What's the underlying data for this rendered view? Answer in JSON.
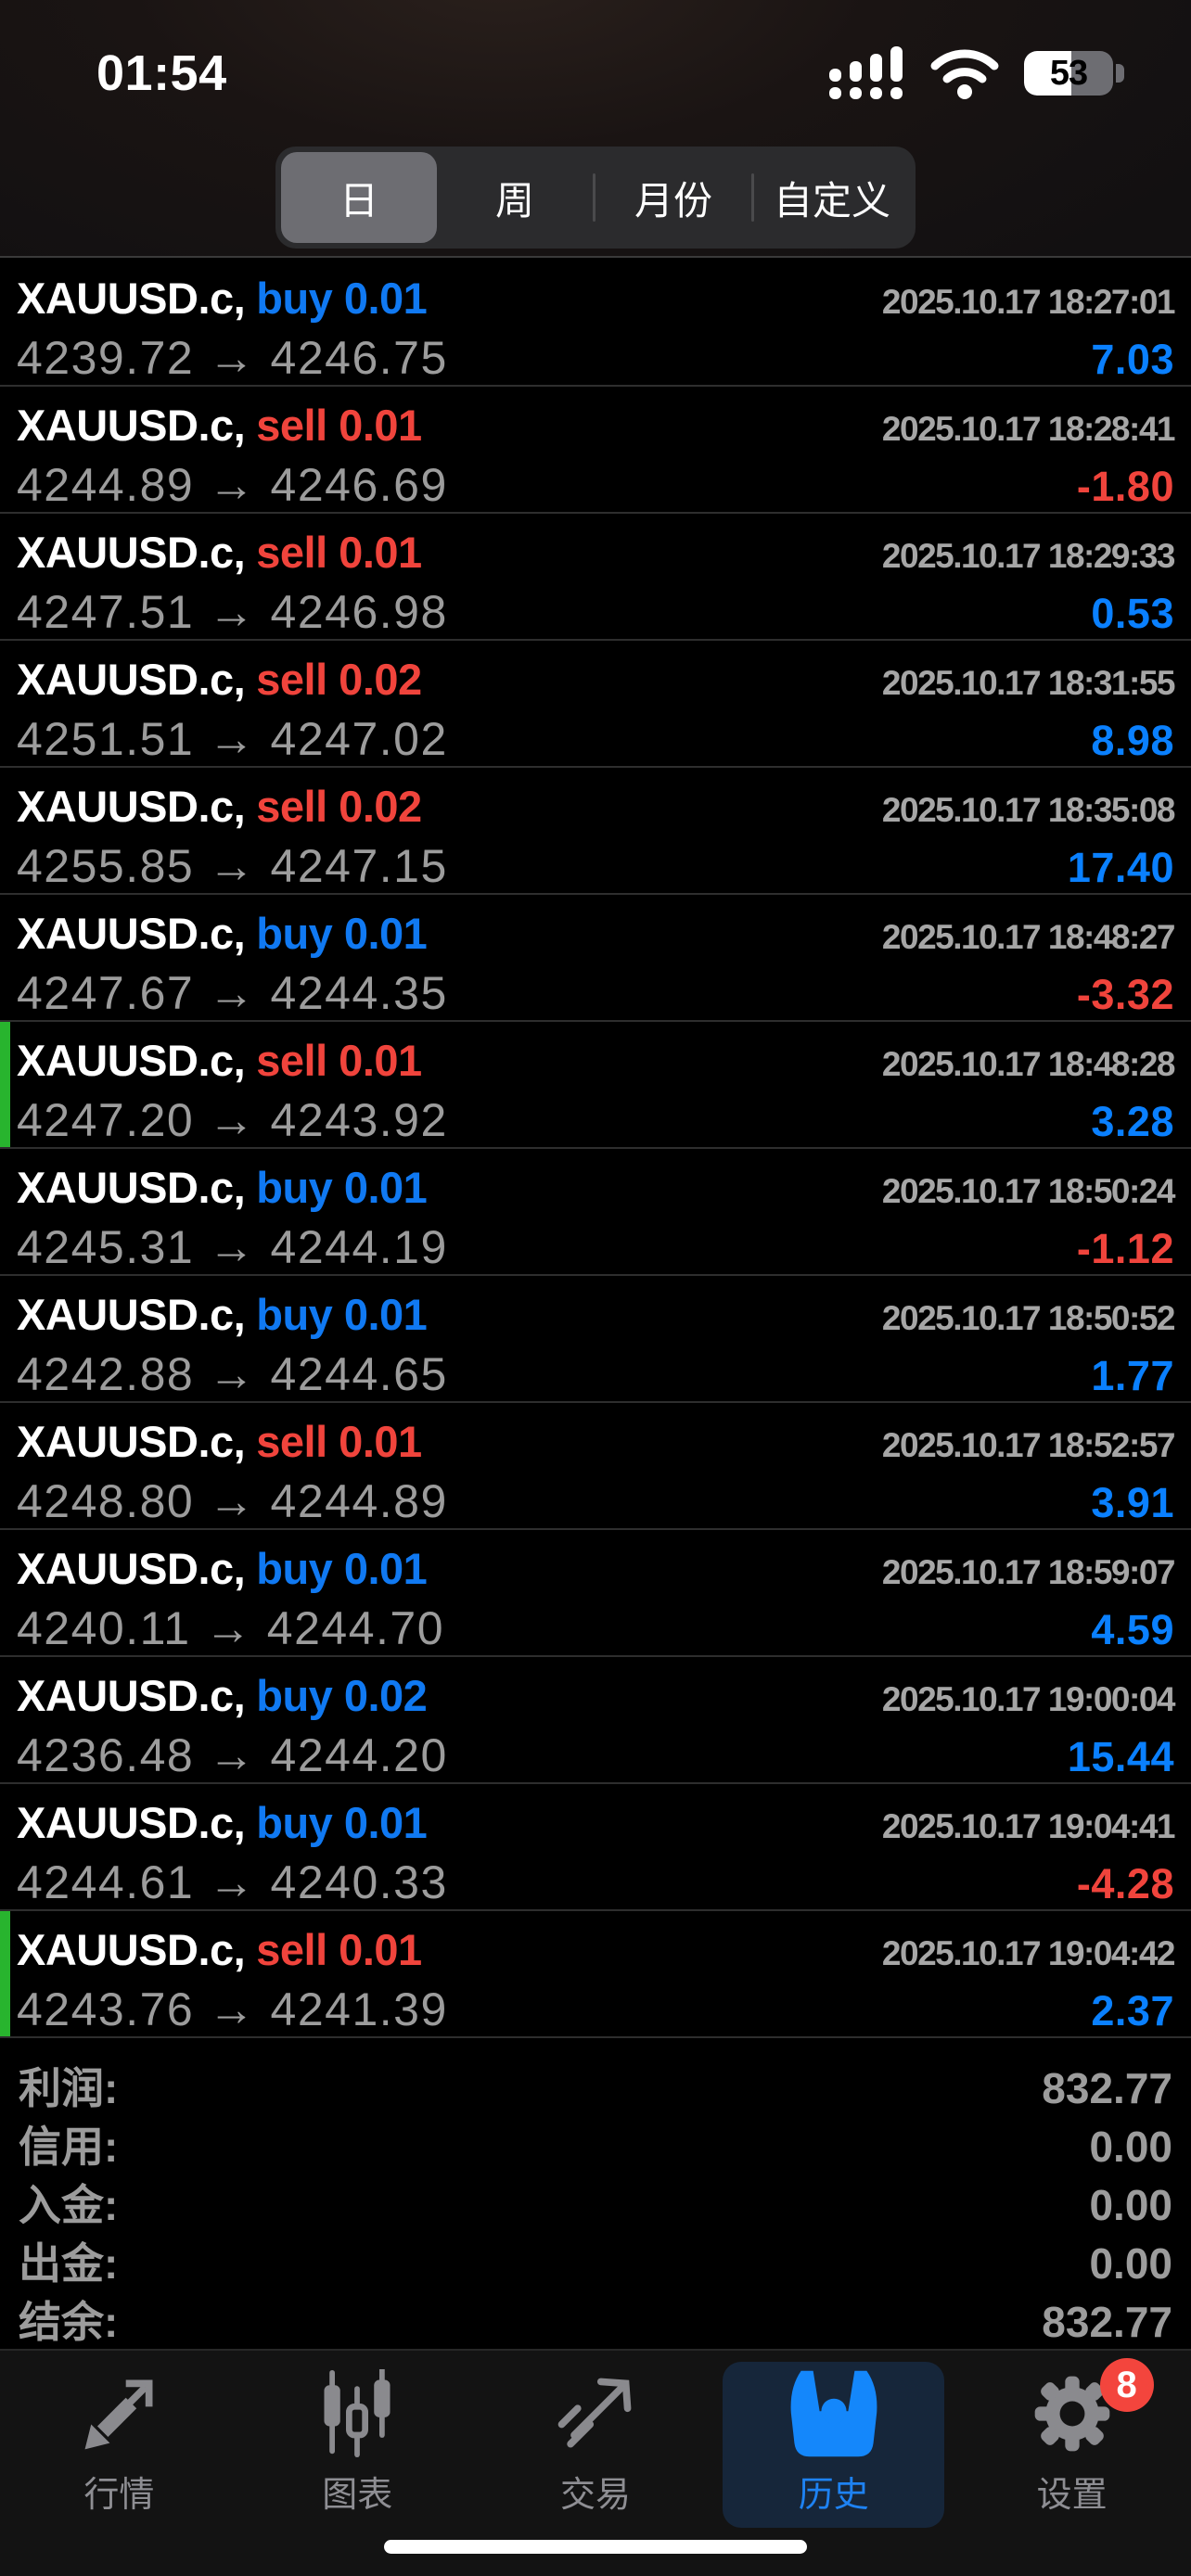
{
  "status_bar": {
    "time": "01:54",
    "battery_percent": "53"
  },
  "period_tabs": {
    "options": [
      {
        "label": "日",
        "selected": true
      },
      {
        "label": "周",
        "selected": false
      },
      {
        "label": "月份",
        "selected": false
      },
      {
        "label": "自定义",
        "selected": false
      }
    ]
  },
  "history": {
    "rows": [
      {
        "symbol": "XAUUSD.c,",
        "side": "buy",
        "side_text": "buy 0.01",
        "time": "2025.10.17 18:27:01",
        "prices": "4239.72 → 4246.75",
        "profit": "7.03",
        "marker": false
      },
      {
        "symbol": "XAUUSD.c,",
        "side": "sell",
        "side_text": "sell 0.01",
        "time": "2025.10.17 18:28:41",
        "prices": "4244.89 → 4246.69",
        "profit": "-1.80",
        "marker": false
      },
      {
        "symbol": "XAUUSD.c,",
        "side": "sell",
        "side_text": "sell 0.01",
        "time": "2025.10.17 18:29:33",
        "prices": "4247.51 → 4246.98",
        "profit": "0.53",
        "marker": false
      },
      {
        "symbol": "XAUUSD.c,",
        "side": "sell",
        "side_text": "sell 0.02",
        "time": "2025.10.17 18:31:55",
        "prices": "4251.51 → 4247.02",
        "profit": "8.98",
        "marker": false
      },
      {
        "symbol": "XAUUSD.c,",
        "side": "sell",
        "side_text": "sell 0.02",
        "time": "2025.10.17 18:35:08",
        "prices": "4255.85 → 4247.15",
        "profit": "17.40",
        "marker": false
      },
      {
        "symbol": "XAUUSD.c,",
        "side": "buy",
        "side_text": "buy 0.01",
        "time": "2025.10.17 18:48:27",
        "prices": "4247.67 → 4244.35",
        "profit": "-3.32",
        "marker": false
      },
      {
        "symbol": "XAUUSD.c,",
        "side": "sell",
        "side_text": "sell 0.01",
        "time": "2025.10.17 18:48:28",
        "prices": "4247.20 → 4243.92",
        "profit": "3.28",
        "marker": true
      },
      {
        "symbol": "XAUUSD.c,",
        "side": "buy",
        "side_text": "buy 0.01",
        "time": "2025.10.17 18:50:24",
        "prices": "4245.31 → 4244.19",
        "profit": "-1.12",
        "marker": false
      },
      {
        "symbol": "XAUUSD.c,",
        "side": "buy",
        "side_text": "buy 0.01",
        "time": "2025.10.17 18:50:52",
        "prices": "4242.88 → 4244.65",
        "profit": "1.77",
        "marker": false
      },
      {
        "symbol": "XAUUSD.c,",
        "side": "sell",
        "side_text": "sell 0.01",
        "time": "2025.10.17 18:52:57",
        "prices": "4248.80 → 4244.89",
        "profit": "3.91",
        "marker": false
      },
      {
        "symbol": "XAUUSD.c,",
        "side": "buy",
        "side_text": "buy 0.01",
        "time": "2025.10.17 18:59:07",
        "prices": "4240.11 → 4244.70",
        "profit": "4.59",
        "marker": false
      },
      {
        "symbol": "XAUUSD.c,",
        "side": "buy",
        "side_text": "buy 0.02",
        "time": "2025.10.17 19:00:04",
        "prices": "4236.48 → 4244.20",
        "profit": "15.44",
        "marker": false
      },
      {
        "symbol": "XAUUSD.c,",
        "side": "buy",
        "side_text": "buy 0.01",
        "time": "2025.10.17 19:04:41",
        "prices": "4244.61 → 4240.33",
        "profit": "-4.28",
        "marker": false
      },
      {
        "symbol": "XAUUSD.c,",
        "side": "sell",
        "side_text": "sell 0.01",
        "time": "2025.10.17 19:04:42",
        "prices": "4243.76 → 4241.39",
        "profit": "2.37",
        "marker": true
      }
    ]
  },
  "summary": {
    "rows": [
      {
        "label": "利润:",
        "value": "832.77"
      },
      {
        "label": "信用:",
        "value": "0.00"
      },
      {
        "label": "入金:",
        "value": "0.00"
      },
      {
        "label": "出金:",
        "value": "0.00"
      },
      {
        "label": "结余:",
        "value": "832.77"
      }
    ]
  },
  "tab_bar": {
    "items": [
      {
        "label": "行情",
        "icon": "quotes-icon",
        "selected": false
      },
      {
        "label": "图表",
        "icon": "charts-icon",
        "selected": false
      },
      {
        "label": "交易",
        "icon": "trade-icon",
        "selected": false
      },
      {
        "label": "历史",
        "icon": "history-icon",
        "selected": true
      },
      {
        "label": "设置",
        "icon": "settings-icon",
        "selected": false,
        "badge": "8"
      }
    ]
  },
  "colors": {
    "buy_blue": "#1079f2",
    "sell_red": "#f0443c",
    "profit_blue": "#0a80ff",
    "loss_red": "#f0443c",
    "marker_green": "#28b42e",
    "tab_selected_blue": "#1e82f2",
    "tab_selected_bg": "#16263a",
    "badge_red": "#f3453d"
  }
}
